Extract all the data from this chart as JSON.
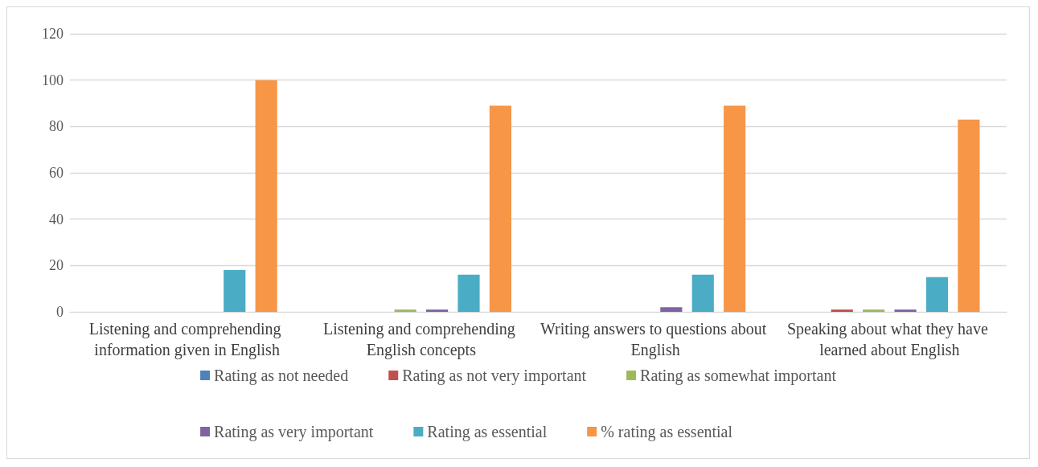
{
  "chart_data": {
    "type": "bar",
    "categories": [
      "Listening and comprehending information given in English",
      "Listening and comprehending English concepts",
      "Writing answers to questions about English",
      "Speaking about what they have learned about English"
    ],
    "series": [
      {
        "name": "Rating as not needed",
        "color": "#4f81bd",
        "values": [
          0,
          0,
          0,
          0
        ]
      },
      {
        "name": "Rating as not very important",
        "color": "#c0504d",
        "values": [
          0,
          0,
          0,
          1
        ]
      },
      {
        "name": "Rating as somewhat important",
        "color": "#9bbb59",
        "values": [
          0,
          1,
          0,
          1
        ]
      },
      {
        "name": "Rating as very important",
        "color": "#8064a2",
        "values": [
          0,
          1,
          2,
          1
        ]
      },
      {
        "name": "Rating as essential",
        "color": "#4bacc6",
        "values": [
          18,
          16,
          16,
          15
        ]
      },
      {
        "name": "% rating as essential",
        "color": "#f79646",
        "values": [
          100,
          89,
          89,
          83
        ]
      }
    ],
    "ylim": [
      0,
      120
    ],
    "yticks": [
      0,
      20,
      40,
      60,
      80,
      100,
      120
    ],
    "grid": "y",
    "legend": "bottom"
  }
}
